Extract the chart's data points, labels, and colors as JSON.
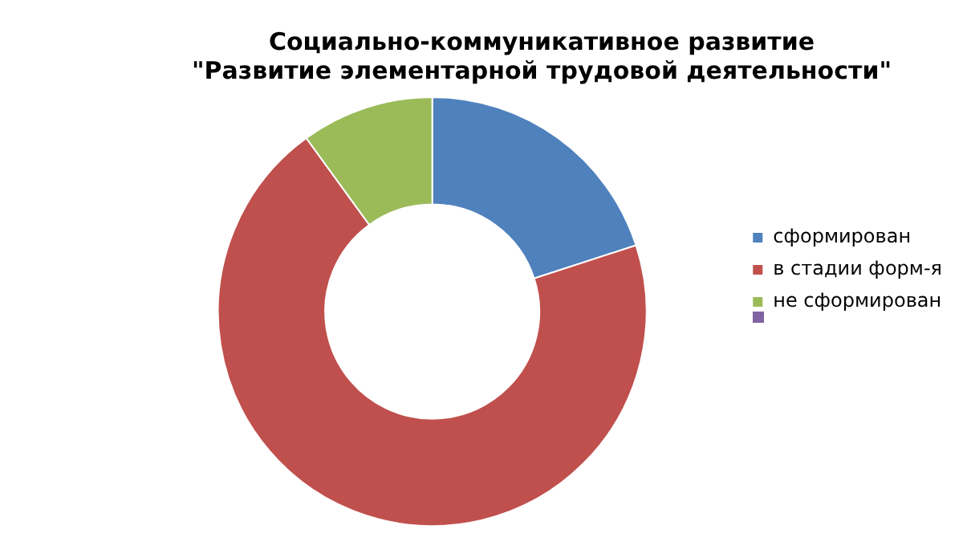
{
  "chart_data": {
    "type": "donut",
    "title": "Социально-коммуникативное развитие\n\"Развитие элементарной трудовой деятельности\"",
    "categories": [
      "сформирован",
      "в стадии форм-я",
      "не сформирован"
    ],
    "values": [
      20,
      70,
      10
    ],
    "colors": [
      "#4f81bd",
      "#c0504d",
      "#9bbb59"
    ],
    "legend": "right"
  }
}
